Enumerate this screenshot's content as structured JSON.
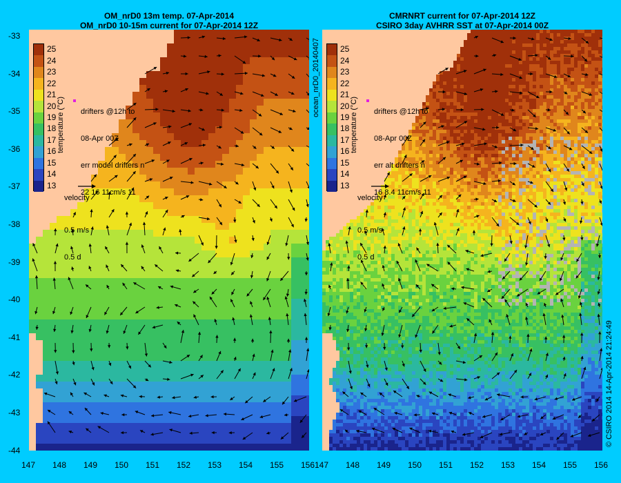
{
  "left": {
    "title1": "OM_nrD0 13m temp. 07-Apr-2014",
    "title2": "OM_nrD0 10-15m current for 07-Apr-2014 12Z",
    "drifters_lines": [
      "drifters @12h to",
      "08-Apr 00Z",
      "err model drifters n",
      "22 16 11cm/s 11"
    ]
  },
  "right": {
    "title1": "CMRNRT current for 07-Apr-2014 12Z",
    "title2": "CSIRO 3day AVHRR SST at 07-Apr-2014 00Z",
    "drifters_lines": [
      "drifters @12h to",
      "08-Apr 00Z",
      "err alt drifters n",
      "16 8.4 11cm/s 11"
    ]
  },
  "colorbar": {
    "label": "temperature (°C)",
    "ticks": [
      25,
      24,
      23,
      22,
      21,
      20,
      19,
      18,
      17,
      16,
      15,
      14,
      13
    ],
    "colors": [
      "#a0300a",
      "#c45214",
      "#e0861c",
      "#f5b41e",
      "#eee21e",
      "#b5e43a",
      "#6ad23f",
      "#37c062",
      "#2bb8a0",
      "#32a2d4",
      "#2f74e0",
      "#2a45c0",
      "#1a248c"
    ]
  },
  "velocity": {
    "label": "velocity",
    "speed": "0.5 m/s",
    "duration": "0.5 d"
  },
  "axis": {
    "lon_ticks": [
      "147",
      "148",
      "149",
      "150",
      "151",
      "152",
      "153",
      "154",
      "155",
      "156"
    ],
    "lat_ticks": [
      "-33",
      "-34",
      "-35",
      "-36",
      "-37",
      "-38",
      "-39",
      "-40",
      "-41",
      "-42",
      "-43",
      "-44"
    ]
  },
  "side_left": "ocean_nrD0_20140407",
  "side_right": "© CSIRO 2014   14-Apr-2014 21:24:49",
  "colors": {
    "background": "#00ccff",
    "land": "#ffc8a0",
    "arrow": "#000000",
    "cloud": "#b4b4b4"
  }
}
